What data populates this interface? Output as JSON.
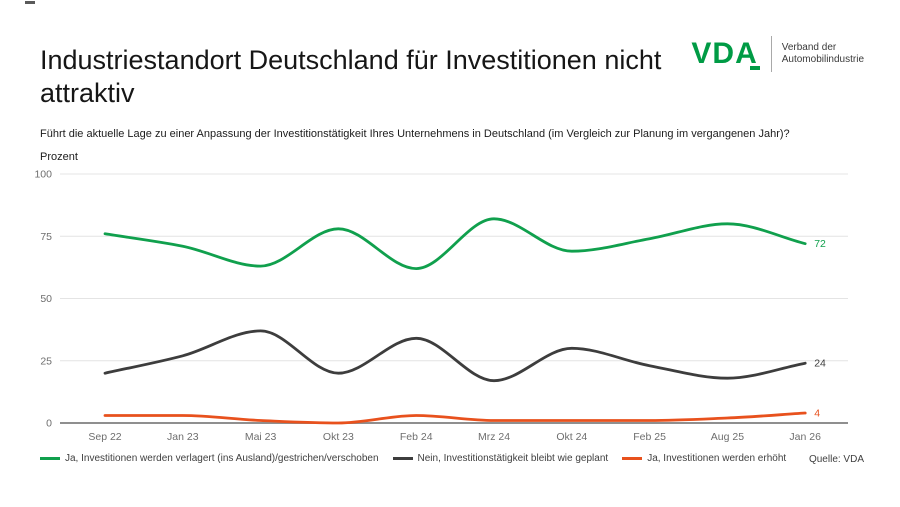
{
  "page": {
    "title": "Industriestandort Deutschland für Investitionen nicht attraktiv",
    "question": "Führt die aktuelle Lage zu einer Anpassung der Investitionstätigkeit Ihres Unternehmens in Deutschland (im Vergleich zur Planung im vergangenen Jahr)?",
    "source": "Quelle: VDA"
  },
  "logo": {
    "text": "VDA",
    "org_line1": "Verband der",
    "org_line2": "Automobilindustrie",
    "green": "#009b45"
  },
  "chart_data": {
    "type": "line",
    "title": "Industriestandort Deutschland für Investitionen nicht attraktiv",
    "unit_label": "Prozent",
    "categories": [
      "Sep 22",
      "Jan 23",
      "Mai 23",
      "Okt 23",
      "Feb 24",
      "Mrz 24",
      "Okt 24",
      "Feb 25",
      "Aug 25",
      "Jan 26"
    ],
    "series": [
      {
        "name": "Ja, Investitionen werden verlagert (ins Ausland)/gestrichen/verschoben",
        "color": "#10a04d",
        "values": [
          76,
          71,
          63,
          78,
          62,
          82,
          69,
          74,
          80,
          72
        ],
        "end_label": "72"
      },
      {
        "name": "Nein, Investitionstätigkeit bleibt wie geplant",
        "color": "#3d3d3d",
        "values": [
          20,
          27,
          37,
          20,
          34,
          17,
          30,
          23,
          18,
          24
        ],
        "end_label": "24"
      },
      {
        "name": "Ja, Investitionen werden erhöht",
        "color": "#e8511d",
        "values": [
          3,
          3,
          1,
          0,
          3,
          1,
          1,
          1,
          2,
          4
        ],
        "end_label": "4"
      }
    ],
    "ylim": [
      0,
      100
    ],
    "yticks": [
      0,
      25,
      50,
      75,
      100
    ],
    "grid": true,
    "smooth": true,
    "legend_position": "bottom",
    "axis_color": "#8f8f8f",
    "grid_color": "#e4e4e4",
    "tick_label_color": "#6e6e6e"
  }
}
